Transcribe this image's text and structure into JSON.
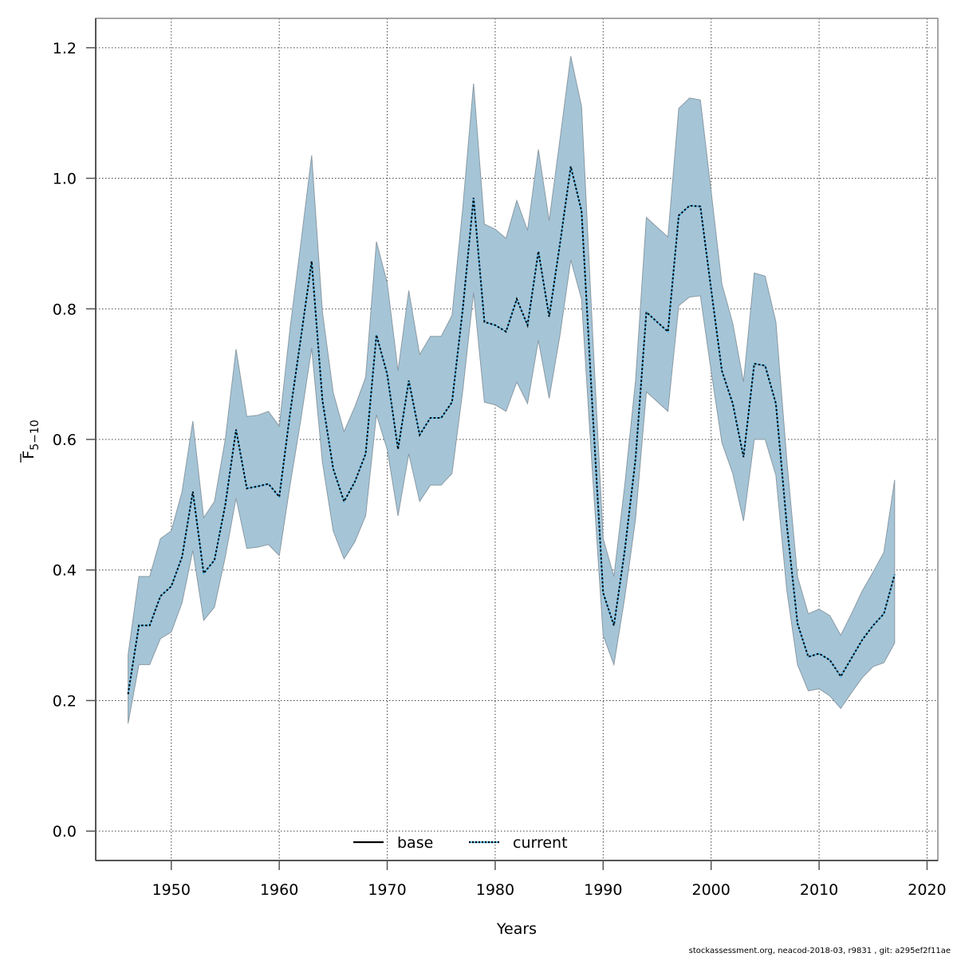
{
  "chart_data": {
    "type": "area",
    "title": "",
    "xlabel": "Years",
    "ylabel_main": "F",
    "ylabel_subscript": "5−10",
    "ylabel_overline": true,
    "xlim": [
      1943,
      2021
    ],
    "ylim": [
      -0.045,
      1.245
    ],
    "xticks": [
      1950,
      1960,
      1970,
      1980,
      1990,
      2000,
      2010,
      2020
    ],
    "xtick_labels": [
      "1950",
      "1960",
      "1970",
      "1980",
      "1990",
      "2000",
      "2010",
      "2020"
    ],
    "yticks": [
      0.0,
      0.2,
      0.4,
      0.6,
      0.8,
      1.0,
      1.2
    ],
    "ytick_labels": [
      "0.0",
      "0.2",
      "0.4",
      "0.6",
      "0.8",
      "1.0",
      "1.2"
    ],
    "grid": true,
    "legend": {
      "placement": "bottom-center",
      "entries": [
        {
          "label": "base",
          "color": "#000000",
          "style": "solid"
        },
        {
          "label": "current",
          "color": "#000000",
          "style": "dotted",
          "accent": "#5bb8e6"
        }
      ]
    },
    "colors": {
      "band_fill": "#a5c5d7",
      "band_stroke": "#8a9aa4",
      "line": "#000000",
      "line_highlight": "#5bb8e6",
      "grid": "#444444",
      "axis": "#555555"
    },
    "x": [
      1946,
      1947,
      1948,
      1949,
      1950,
      1951,
      1952,
      1953,
      1954,
      1955,
      1956,
      1957,
      1958,
      1959,
      1960,
      1961,
      1962,
      1963,
      1964,
      1965,
      1966,
      1967,
      1968,
      1969,
      1970,
      1971,
      1972,
      1973,
      1974,
      1975,
      1976,
      1977,
      1978,
      1979,
      1980,
      1981,
      1982,
      1983,
      1984,
      1985,
      1986,
      1987,
      1988,
      1989,
      1990,
      1991,
      1992,
      1993,
      1994,
      1995,
      1996,
      1997,
      1998,
      1999,
      2000,
      2001,
      2002,
      2003,
      2004,
      2005,
      2006,
      2007,
      2008,
      2009,
      2010,
      2011,
      2012,
      2013,
      2014,
      2015,
      2016,
      2017
    ],
    "series": [
      {
        "name": "current",
        "values": [
          0.21,
          0.315,
          0.315,
          0.36,
          0.375,
          0.42,
          0.52,
          0.395,
          0.415,
          0.5,
          0.615,
          0.525,
          0.528,
          0.532,
          0.512,
          0.64,
          0.755,
          0.873,
          0.66,
          0.555,
          0.505,
          0.535,
          0.578,
          0.76,
          0.7,
          0.585,
          0.69,
          0.607,
          0.633,
          0.633,
          0.657,
          0.8,
          0.97,
          0.78,
          0.775,
          0.765,
          0.815,
          0.775,
          0.888,
          0.788,
          0.9,
          1.018,
          0.95,
          0.65,
          0.365,
          0.315,
          0.43,
          0.57,
          0.795,
          0.78,
          0.765,
          0.943,
          0.958,
          0.957,
          0.83,
          0.705,
          0.655,
          0.573,
          0.716,
          0.713,
          0.655,
          0.47,
          0.318,
          0.267,
          0.272,
          0.262,
          0.237,
          0.265,
          0.293,
          0.315,
          0.333,
          0.393
        ],
        "lower": [
          0.165,
          0.255,
          0.255,
          0.295,
          0.305,
          0.35,
          0.43,
          0.323,
          0.343,
          0.42,
          0.51,
          0.433,
          0.435,
          0.439,
          0.422,
          0.53,
          0.63,
          0.74,
          0.565,
          0.46,
          0.417,
          0.443,
          0.483,
          0.638,
          0.585,
          0.483,
          0.578,
          0.505,
          0.53,
          0.53,
          0.548,
          0.675,
          0.825,
          0.657,
          0.653,
          0.643,
          0.688,
          0.655,
          0.752,
          0.663,
          0.76,
          0.875,
          0.815,
          0.55,
          0.3,
          0.255,
          0.358,
          0.478,
          0.673,
          0.658,
          0.643,
          0.805,
          0.818,
          0.82,
          0.705,
          0.595,
          0.548,
          0.475,
          0.6,
          0.6,
          0.545,
          0.37,
          0.255,
          0.215,
          0.218,
          0.207,
          0.188,
          0.212,
          0.235,
          0.252,
          0.258,
          0.288
        ],
        "upper": [
          0.27,
          0.39,
          0.39,
          0.448,
          0.46,
          0.52,
          0.628,
          0.48,
          0.505,
          0.6,
          0.738,
          0.635,
          0.637,
          0.643,
          0.62,
          0.77,
          0.9,
          1.035,
          0.795,
          0.672,
          0.612,
          0.65,
          0.695,
          0.903,
          0.84,
          0.705,
          0.828,
          0.73,
          0.758,
          0.758,
          0.79,
          0.955,
          1.145,
          0.93,
          0.922,
          0.908,
          0.966,
          0.92,
          1.044,
          0.935,
          1.06,
          1.187,
          1.11,
          0.77,
          0.448,
          0.39,
          0.53,
          0.69,
          0.94,
          0.925,
          0.91,
          1.107,
          1.123,
          1.12,
          0.98,
          0.838,
          0.778,
          0.688,
          0.855,
          0.85,
          0.78,
          0.57,
          0.39,
          0.333,
          0.34,
          0.33,
          0.3,
          0.333,
          0.368,
          0.397,
          0.427,
          0.538
        ]
      }
    ]
  },
  "footer": {
    "text": "stockassessment.org, neacod-2018-03, r9831 , git: a295ef2f11ae"
  }
}
